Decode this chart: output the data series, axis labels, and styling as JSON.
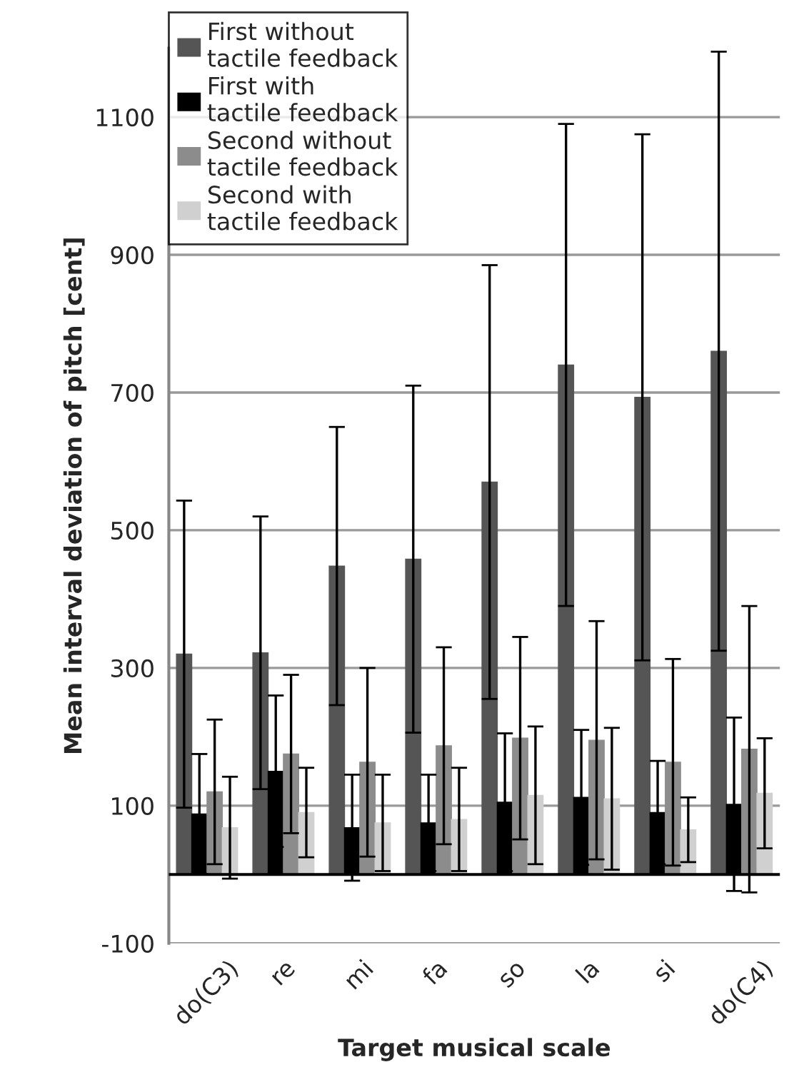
{
  "chart_data": {
    "type": "bar",
    "xlabel": "Target musical scale",
    "ylabel": "Mean interval deviation of pitch [cent]",
    "categories": [
      "do(C3)",
      "re",
      "mi",
      "fa",
      "so",
      "la",
      "si",
      "do(C4)"
    ],
    "series": [
      {
        "name": "First without tactile feedback",
        "color": "#555555",
        "values": [
          320,
          322,
          448,
          458,
          570,
          740,
          693,
          760
        ],
        "errors": [
          223,
          198,
          202,
          252,
          315,
          350,
          382,
          435
        ]
      },
      {
        "name": "First with tactile feedback",
        "color": "#000000",
        "values": [
          88,
          150,
          68,
          75,
          105,
          112,
          90,
          102
        ],
        "errors": [
          87,
          110,
          77,
          70,
          100,
          98,
          75,
          126
        ]
      },
      {
        "name": "Second without tactile feedback",
        "color": "#8c8c8c",
        "values": [
          120,
          175,
          163,
          187,
          198,
          195,
          163,
          182
        ],
        "errors": [
          105,
          115,
          137,
          143,
          147,
          173,
          150,
          208
        ]
      },
      {
        "name": "Second with tactile feedback",
        "color": "#d0d0d0",
        "values": [
          68,
          90,
          75,
          80,
          115,
          110,
          65,
          118
        ],
        "errors": [
          74,
          65,
          70,
          75,
          100,
          103,
          47,
          80
        ]
      }
    ],
    "ylim": [
      -100,
      1200
    ],
    "yticks": [
      -100,
      100,
      300,
      500,
      700,
      900,
      1100
    ],
    "grid": "y",
    "legend": "top left"
  }
}
